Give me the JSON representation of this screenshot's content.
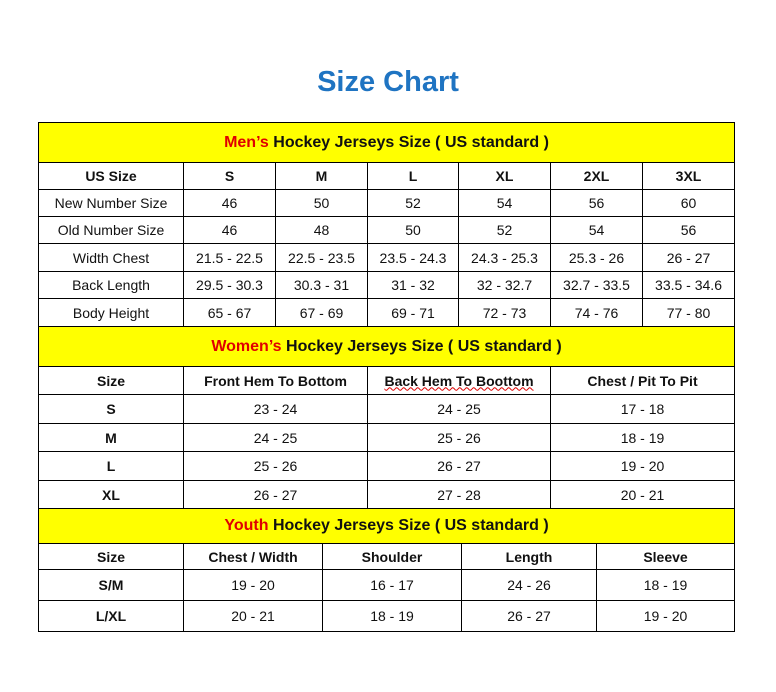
{
  "title": "Size Chart",
  "men": {
    "heading_prefix": "Men’s",
    "heading_rest": " Hockey Jerseys Size ( US standard )",
    "columns": [
      "US Size",
      "S",
      "M",
      "L",
      "XL",
      "2XL",
      "3XL"
    ],
    "rows": [
      [
        "New Number Size",
        "46",
        "50",
        "52",
        "54",
        "56",
        "60"
      ],
      [
        "Old Number Size",
        "46",
        "48",
        "50",
        "52",
        "54",
        "56"
      ],
      [
        "Width Chest",
        "21.5 - 22.5",
        "22.5 - 23.5",
        "23.5 - 24.3",
        "24.3 - 25.3",
        "25.3 - 26",
        "26 - 27"
      ],
      [
        "Back Length",
        "29.5 - 30.3",
        "30.3 - 31",
        "31 - 32",
        "32 - 32.7",
        "32.7 - 33.5",
        "33.5 - 34.6"
      ],
      [
        "Body Height",
        "65 - 67",
        "67 - 69",
        "69 - 71",
        "72 - 73",
        "74 - 76",
        "77 - 80"
      ]
    ]
  },
  "women": {
    "heading_prefix": "Women’s",
    "heading_rest": " Hockey Jerseys Size ( US standard )",
    "columns": [
      "Size",
      "Front Hem To Bottom",
      "Back Hem To Boottom",
      "Chest / Pit To Pit"
    ],
    "rows": [
      [
        "S",
        "23 - 24",
        "24 - 25",
        "17 - 18"
      ],
      [
        "M",
        "24 - 25",
        "25 - 26",
        "18 - 19"
      ],
      [
        "L",
        "25 - 26",
        "26 - 27",
        "19 - 20"
      ],
      [
        "XL",
        "26 - 27",
        "27 - 28",
        "20 - 21"
      ]
    ]
  },
  "youth": {
    "heading_prefix": "Youth",
    "heading_rest": " Hockey Jerseys Size ( US standard )",
    "columns": [
      "Size",
      "Chest / Width",
      "Shoulder",
      "Length",
      "Sleeve"
    ],
    "rows": [
      [
        "S/M",
        "19 - 20",
        "16 - 17",
        "24 - 26",
        "18 - 19"
      ],
      [
        "L/XL",
        "20 - 21",
        "18 - 19",
        "26 - 27",
        "19 - 20"
      ]
    ]
  },
  "colors": {
    "title": "#1f74c2",
    "header_bg": "#ffff00",
    "accent_red": "#e00000"
  }
}
